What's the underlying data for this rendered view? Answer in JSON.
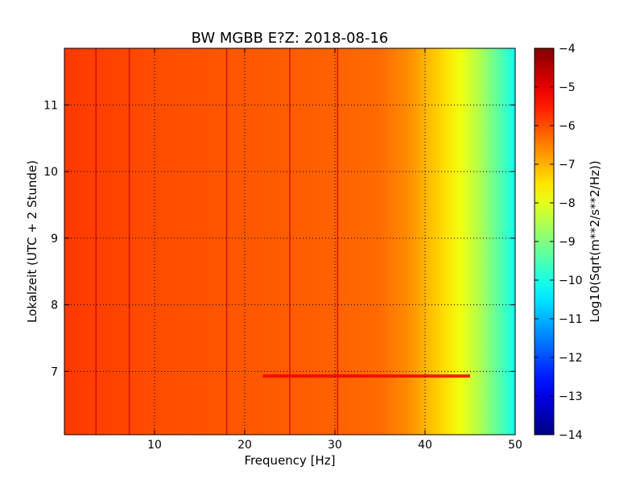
{
  "chart_data": {
    "type": "heatmap",
    "title": "BW MGBB E?Z: 2018-08-16",
    "xlabel": "Frequency [Hz]",
    "ylabel": "Lokalzeit (UTC + 2 Stunde)",
    "xlim": [
      0,
      50
    ],
    "ylim": [
      11.85,
      6.05
    ],
    "x_ticks": [
      10,
      20,
      30,
      40,
      50
    ],
    "y_ticks": [
      7,
      8,
      9,
      10,
      11
    ],
    "grid": true,
    "colorbar": {
      "label": "Log10(Sqrt(m**2/s**2/Hz))",
      "range": [
        -14,
        -4
      ],
      "ticks": [
        -4,
        -5,
        -6,
        -7,
        -8,
        -9,
        -10,
        -11,
        -12,
        -13,
        -14
      ],
      "colormap": "jet"
    },
    "spectrum_profile": {
      "frequency_hz": [
        0,
        5,
        10,
        15,
        20,
        25,
        30,
        35,
        38,
        40,
        42,
        44,
        46,
        48,
        50
      ],
      "log10_amplitude": [
        -5.8,
        -5.9,
        -6.0,
        -6.05,
        -6.1,
        -6.15,
        -6.2,
        -6.3,
        -6.6,
        -7.0,
        -7.4,
        -7.9,
        -8.5,
        -9.3,
        -10.1
      ]
    },
    "vertical_lines_hz": [
      3.5,
      7.2,
      18,
      25,
      30.3
    ],
    "horizontal_events": [
      {
        "time": 6.93,
        "from_hz": 22,
        "to_hz": 45,
        "value": -5.1
      }
    ]
  },
  "colors": {
    "frame": "#000000",
    "grid": "#000000"
  }
}
